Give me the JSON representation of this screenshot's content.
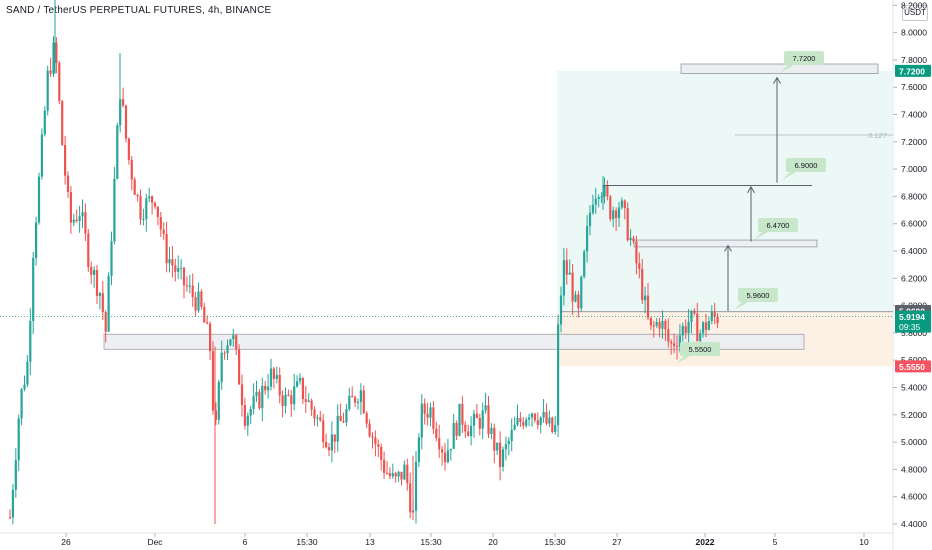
{
  "header": {
    "title": "SAND / TetherUS PERPETUAL FUTURES, 4h, BINANCE",
    "currency_unit": "USDT"
  },
  "colors": {
    "up": "#26a69a",
    "down": "#ef5350",
    "target_zone": "#e7f6f4",
    "stop_zone": "#fdeee0",
    "target_label": "#c8e6c9",
    "price_tag": "#089981",
    "stop_tag": "#f7525f",
    "neutral_tag": "#5d606b"
  },
  "chart_data": {
    "type": "candlestick",
    "title": "SAND / TetherUS PERPETUAL FUTURES, 4h, BINANCE",
    "yaxis": {
      "ticks": [
        "4.4000",
        "4.6000",
        "4.8000",
        "5.0000",
        "5.2000",
        "5.4000",
        "5.6000",
        "5.8000",
        "6.0000",
        "6.2000",
        "6.4000",
        "6.6000",
        "6.8000",
        "7.0000",
        "7.2000",
        "7.4000",
        "7.6000",
        "7.8000",
        "8.0000",
        "8.2000"
      ],
      "range": [
        4.35,
        8.25
      ]
    },
    "xaxis": {
      "ticks": [
        "26",
        "Dec",
        "6",
        "15:30",
        "13",
        "15:30",
        "20",
        "15:30",
        "27",
        "2022",
        "5",
        "10"
      ]
    },
    "price_tags": [
      {
        "label": "7.7200",
        "value": 7.72,
        "role": "target"
      },
      {
        "label": "5.9600",
        "value": 5.96,
        "role": "entry"
      },
      {
        "label": "5.9194",
        "value": 5.9194,
        "role": "last",
        "countdown": "09:35"
      },
      {
        "label": "5.5550",
        "value": 5.555,
        "role": "stop"
      }
    ],
    "annotations": [
      {
        "label": "7.7200",
        "value": 7.72
      },
      {
        "label": "6.9000",
        "value": 6.9
      },
      {
        "label": "6.4700",
        "value": 6.47
      },
      {
        "label": "5.9600",
        "value": 5.96
      },
      {
        "label": "5.5500",
        "value": 5.55
      },
      {
        "label": "0.127",
        "value": 7.25
      }
    ],
    "last_price": 5.9194,
    "support_zone": [
      5.68,
      5.79
    ],
    "resistance_zones": [
      [
        6.43,
        6.48
      ],
      [
        7.7,
        7.77
      ]
    ]
  }
}
